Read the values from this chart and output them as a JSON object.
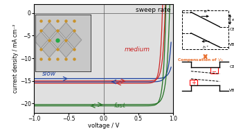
{
  "title": "sweep rate",
  "xlabel": "voltage / V",
  "ylabel": "current density / mA cm⁻²",
  "xlim": [
    -1,
    1
  ],
  "ylim": [
    -22,
    2
  ],
  "yticks": [
    0,
    -5,
    -10,
    -15,
    -20
  ],
  "xticks": [
    -1,
    -0.5,
    0,
    0.5,
    1
  ],
  "bg_color": "#e0e0e0",
  "slow_color": "#1a3fa0",
  "medium_color": "#cc2222",
  "fast_color": "#207020",
  "slow_jsc_fwd": 14.5,
  "slow_jsc_rev": 15.2,
  "slow_n_fwd": 1.8,
  "slow_n_rev": 1.6,
  "slow_j0_fwd": 2e-09,
  "slow_j0_rev": 5e-10,
  "med_jsc_fwd": 15.0,
  "med_jsc_rev": 15.5,
  "med_n_fwd": 1.3,
  "med_n_rev": 1.2,
  "med_j0_fwd": 5e-11,
  "med_j0_rev": 2e-11,
  "fast_jsc_fwd": 20.2,
  "fast_jsc_rev": 20.5,
  "fast_n_fwd": 1.6,
  "fast_n_rev": 1.3,
  "fast_j0_fwd": 2e-09,
  "fast_j0_rev": 5e-11
}
